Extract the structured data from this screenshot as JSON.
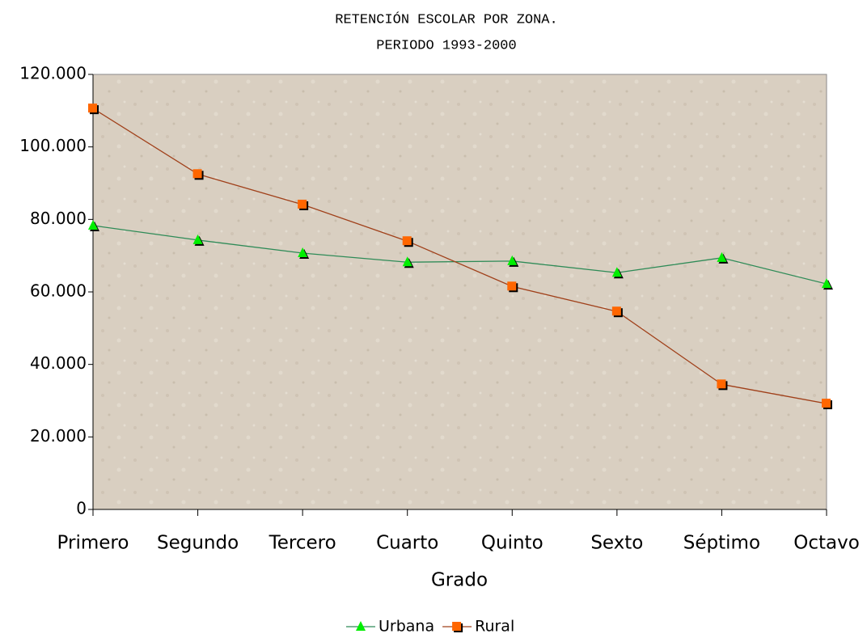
{
  "chart_data": {
    "type": "line",
    "title": "RETENCIÓN ESCOLAR POR ZONA.",
    "subtitle": "PERIODO 1993-2000",
    "x_label": "Grado",
    "categories": [
      "Primero",
      "Segundo",
      "Tercero",
      "Cuarto",
      "Quinto",
      "Sexto",
      "Séptimo",
      "Octavo"
    ],
    "series": [
      {
        "name": "Urbana",
        "color": "#00ee00",
        "line_color": "#2e8b57",
        "marker": "triangle",
        "values": [
          78300,
          74300,
          70700,
          68200,
          68500,
          65300,
          69400,
          62200
        ]
      },
      {
        "name": "Rural",
        "color": "#ff6600",
        "line_color": "#a0401a",
        "marker": "square",
        "values": [
          110600,
          92500,
          84100,
          74000,
          61500,
          54600,
          34500,
          29200
        ]
      }
    ],
    "ylim": [
      0,
      120000
    ],
    "yticks": [
      0,
      {
        "value": 20000,
        "label": "20.000"
      },
      {
        "value": 40000,
        "label": "40.000"
      },
      {
        "value": 60000,
        "label": "60.000"
      },
      {
        "value": 80000,
        "label": "80.000"
      },
      {
        "value": 100000,
        "label": "100.000"
      },
      {
        "value": 120000,
        "label": "120.000"
      }
    ],
    "grid": false,
    "legend": "bottom"
  }
}
